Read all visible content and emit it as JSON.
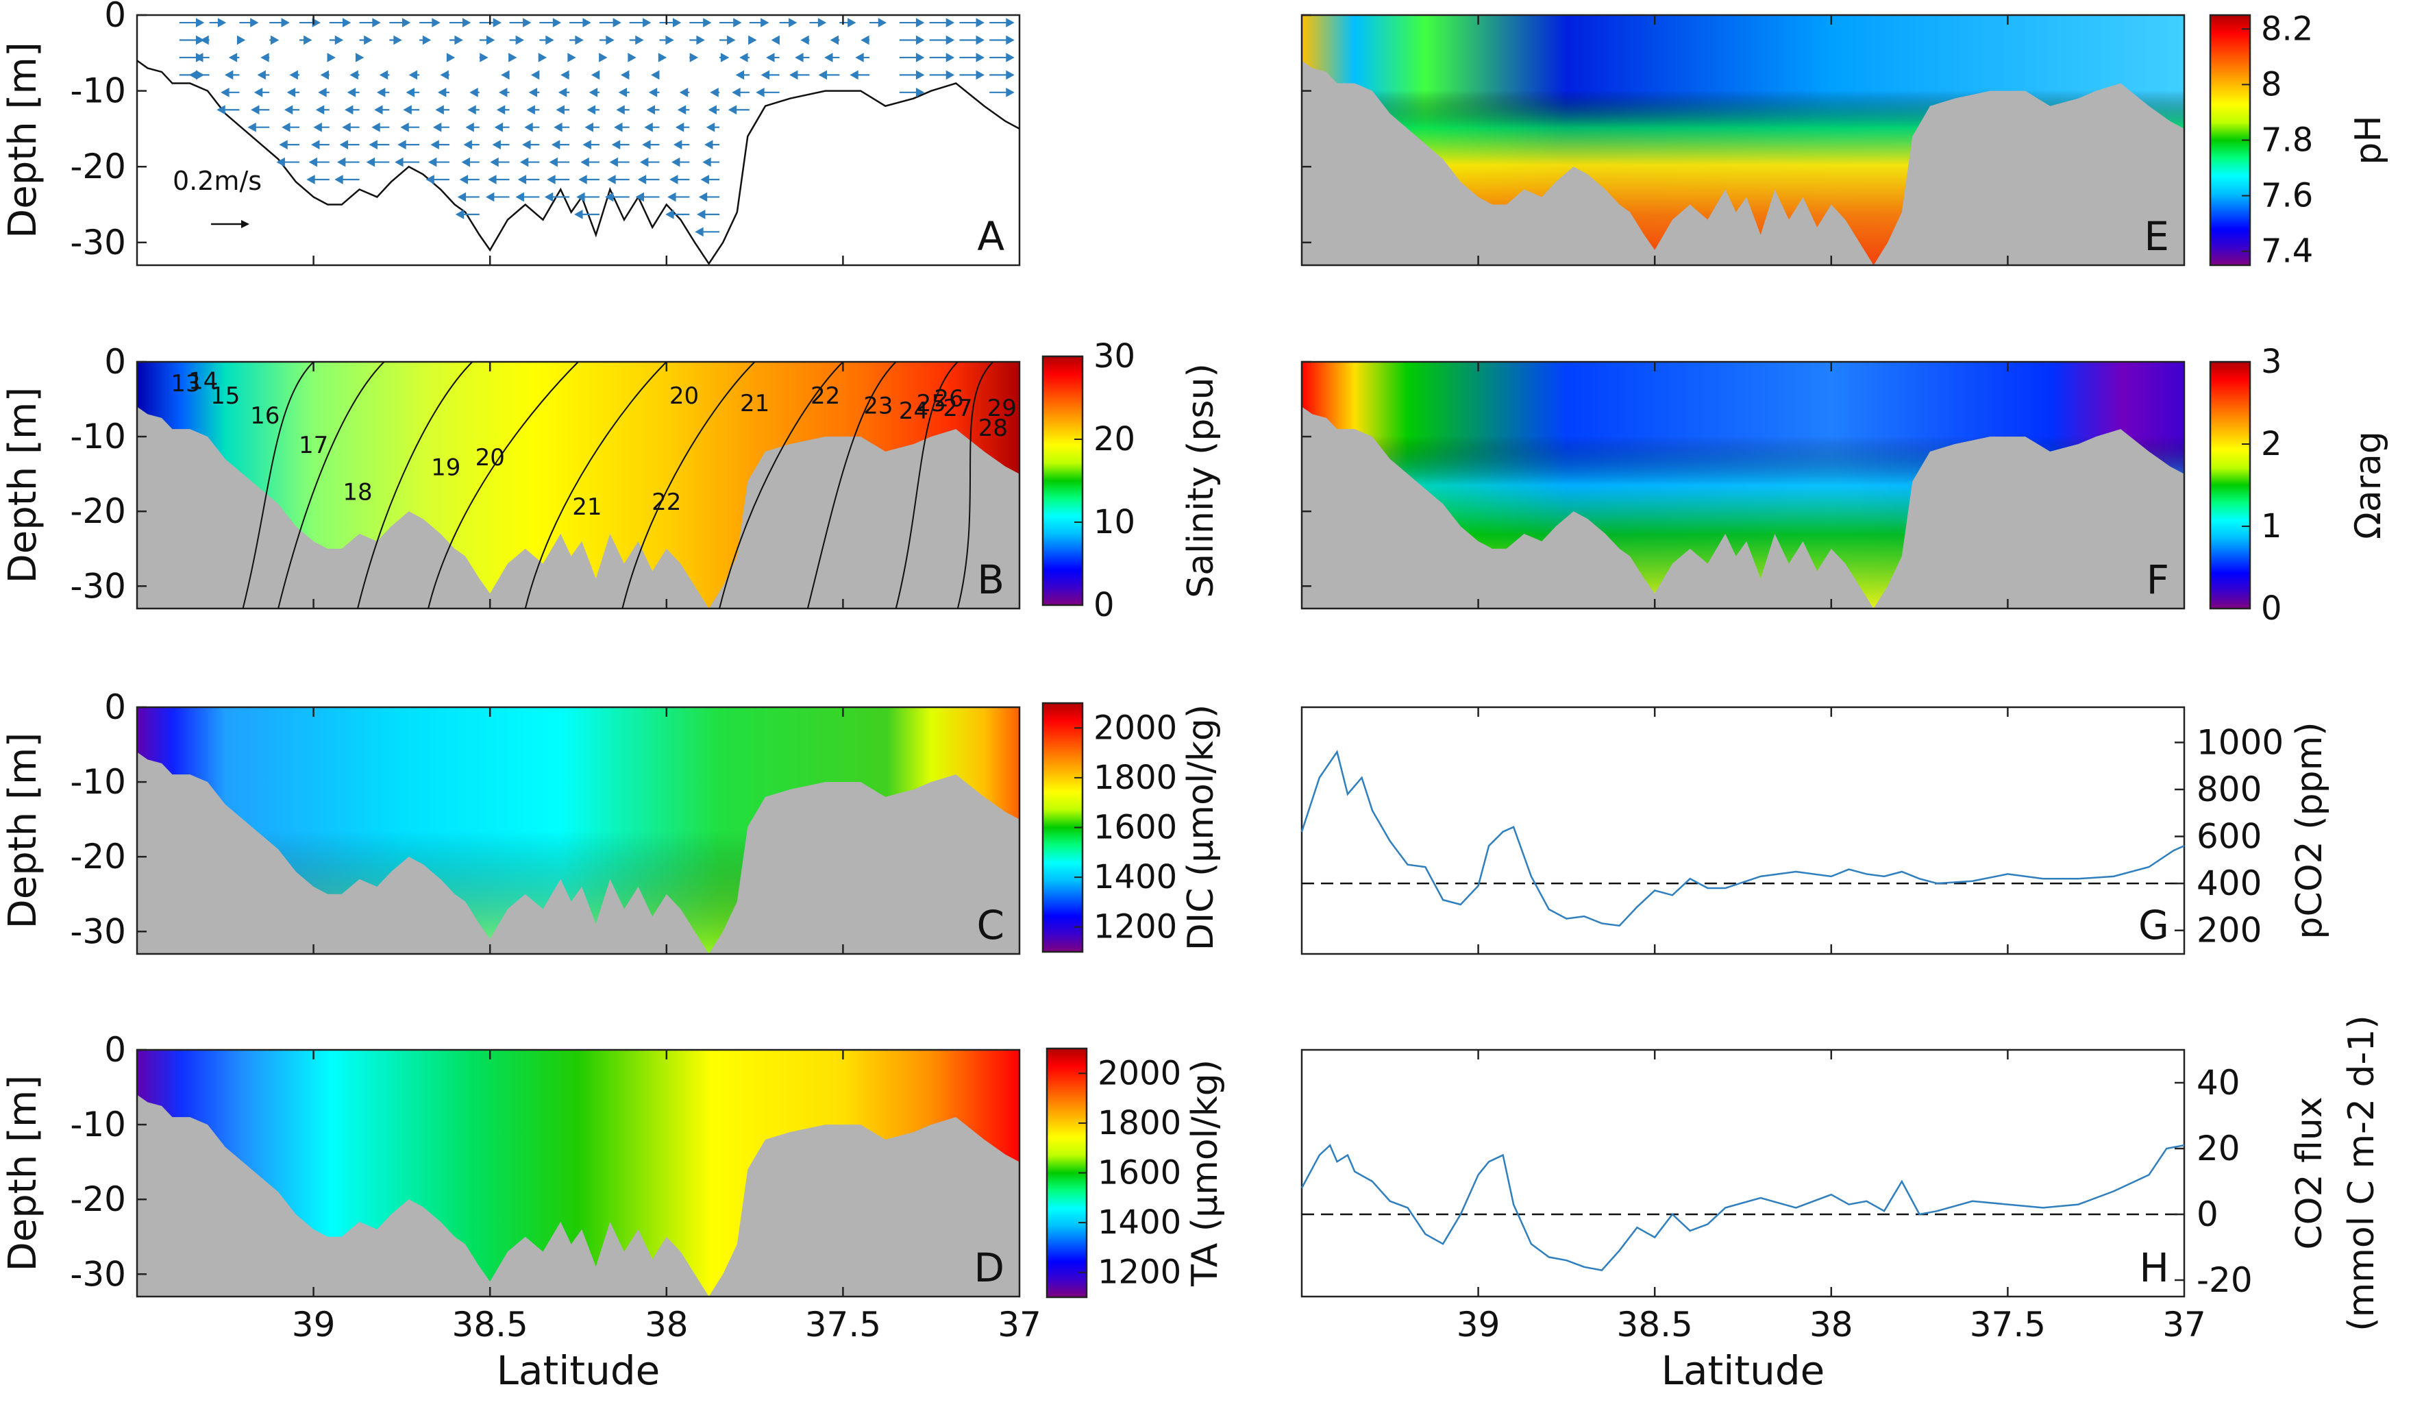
{
  "figure": {
    "x_axis_label": "Latitude",
    "x_ticks": [
      "39",
      "38.5",
      "38",
      "37.5",
      "37"
    ],
    "depth_label": "Depth [m]",
    "depth_ticks": [
      "0",
      "-10",
      "-20",
      "-30"
    ],
    "colors": {
      "bathymetry": "#b3b3b3",
      "line": "#2f7fbf",
      "velocity_arrow": "#2f7fbf",
      "jet": [
        "#800080",
        "#3a00cc",
        "#0000ff",
        "#005fff",
        "#00bfff",
        "#00ffff",
        "#00ff7f",
        "#00cc00",
        "#bfff00",
        "#ffff00",
        "#ffc000",
        "#ff8000",
        "#ff4000",
        "#ff0000",
        "#b00000"
      ]
    }
  },
  "chart_data": [
    {
      "panel": "A",
      "type": "quiver",
      "ylabel": "Depth [m]",
      "scale_label": "0.2m/s",
      "ylim": [
        -33,
        0
      ],
      "xlim": [
        39.5,
        37
      ],
      "notes": "Along-channel velocity section; upper water flows seaward (right), lower layer flows landward (left)"
    },
    {
      "panel": "B",
      "type": "contour",
      "ylabel": "Depth [m]",
      "colorbar_label": "Salinity (psu)",
      "colorbar_ticks": [
        "30",
        "20",
        "10",
        "0"
      ],
      "clim": [
        0,
        30
      ],
      "contour_labels": [
        "13",
        "14",
        "15",
        "16",
        "17",
        "18",
        "19",
        "20",
        "20",
        "21",
        "21",
        "22",
        "22",
        "23",
        "24",
        "25",
        "26",
        "27",
        "28",
        "29"
      ]
    },
    {
      "panel": "C",
      "type": "contourf",
      "ylabel": "Depth [m]",
      "colorbar_label": "DIC (μmol/kg)",
      "colorbar_ticks": [
        "2000",
        "1800",
        "1600",
        "1400",
        "1200"
      ],
      "clim": [
        1100,
        2100
      ]
    },
    {
      "panel": "D",
      "type": "contourf",
      "ylabel": "Depth [m]",
      "colorbar_label": "TA (μmol/kg)",
      "colorbar_ticks": [
        "2000",
        "1800",
        "1600",
        "1400",
        "1200"
      ],
      "clim": [
        1100,
        2100
      ],
      "xlabel": "Latitude"
    },
    {
      "panel": "E",
      "type": "contourf",
      "colorbar_label": "pH",
      "colorbar_ticks": [
        "8.2",
        "8",
        "7.8",
        "7.6",
        "7.4"
      ],
      "clim": [
        7.35,
        8.25
      ]
    },
    {
      "panel": "F",
      "type": "contourf",
      "colorbar_label": "Ωarag",
      "colorbar_ticks": [
        "3",
        "2",
        "1",
        "0"
      ],
      "clim": [
        0,
        3
      ]
    },
    {
      "panel": "G",
      "type": "line",
      "ylabel": "pCO2 (ppm)",
      "y_ticks": [
        "1000",
        "800",
        "600",
        "400",
        "200"
      ],
      "ylim": [
        100,
        1150
      ],
      "reference_line": 400,
      "x": [
        39.5,
        39.45,
        39.4,
        39.37,
        39.33,
        39.3,
        39.25,
        39.2,
        39.15,
        39.1,
        39.05,
        39.0,
        38.97,
        38.93,
        38.9,
        38.85,
        38.8,
        38.75,
        38.7,
        38.65,
        38.6,
        38.55,
        38.5,
        38.45,
        38.4,
        38.35,
        38.3,
        38.2,
        38.1,
        38.0,
        37.95,
        37.9,
        37.85,
        37.8,
        37.75,
        37.7,
        37.6,
        37.5,
        37.4,
        37.3,
        37.2,
        37.1,
        37.03,
        37.0
      ],
      "y": [
        620,
        850,
        960,
        780,
        850,
        710,
        580,
        480,
        470,
        330,
        310,
        390,
        560,
        620,
        640,
        430,
        290,
        250,
        260,
        230,
        220,
        300,
        370,
        350,
        420,
        380,
        380,
        430,
        450,
        430,
        460,
        440,
        430,
        450,
        420,
        400,
        410,
        440,
        420,
        420,
        430,
        470,
        540,
        560
      ]
    },
    {
      "panel": "H",
      "type": "line",
      "ylabel": "CO2 flux",
      "ylabel2": "(mmol C m-2 d-1)",
      "y_ticks": [
        "40",
        "20",
        "0",
        "-20"
      ],
      "ylim": [
        -25,
        50
      ],
      "reference_line": 0,
      "xlabel": "Latitude",
      "x": [
        39.5,
        39.45,
        39.42,
        39.4,
        39.37,
        39.35,
        39.3,
        39.25,
        39.2,
        39.15,
        39.1,
        39.05,
        39.0,
        38.97,
        38.93,
        38.9,
        38.85,
        38.8,
        38.75,
        38.7,
        38.65,
        38.6,
        38.55,
        38.5,
        38.45,
        38.4,
        38.35,
        38.3,
        38.2,
        38.1,
        38.0,
        37.95,
        37.9,
        37.85,
        37.8,
        37.75,
        37.7,
        37.6,
        37.5,
        37.4,
        37.3,
        37.2,
        37.1,
        37.05,
        37.0
      ],
      "y": [
        8,
        18,
        21,
        16,
        18,
        13,
        10,
        4,
        2,
        -6,
        -9,
        0,
        12,
        16,
        18,
        3,
        -9,
        -13,
        -14,
        -16,
        -17,
        -11,
        -4,
        -7,
        0,
        -5,
        -3,
        2,
        5,
        2,
        6,
        3,
        4,
        1,
        10,
        0,
        1,
        4,
        3,
        2,
        3,
        7,
        12,
        20,
        21
      ]
    }
  ]
}
